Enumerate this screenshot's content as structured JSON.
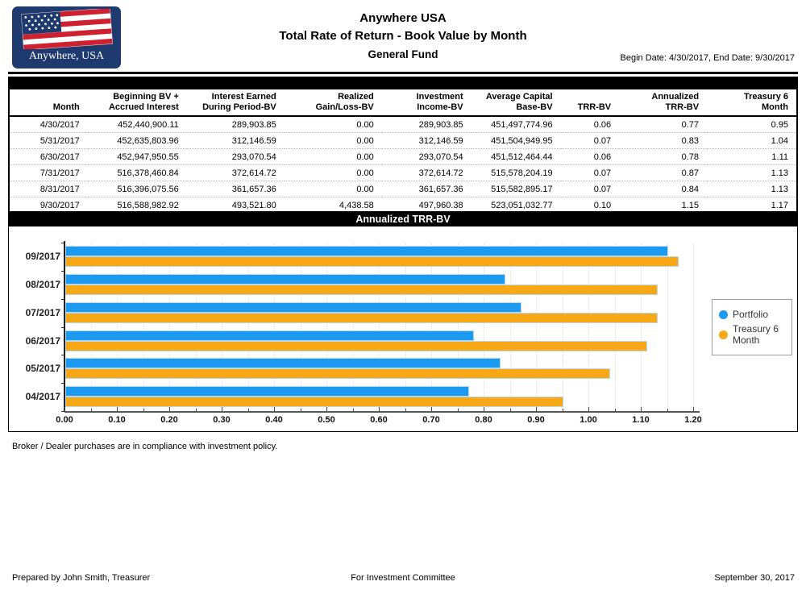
{
  "header": {
    "logo_text": "Anywhere, USA",
    "title": "Anywhere USA",
    "subtitle": "Total Rate of Return - Book Value by Month",
    "fund": "General Fund",
    "date_range": "Begin Date: 4/30/2017, End Date: 9/30/2017"
  },
  "table": {
    "columns": [
      "Month",
      "Beginning BV +\nAccrued Interest",
      "Interest Earned\nDuring Period-BV",
      "Realized\nGain/Loss-BV",
      "Investment\nIncome-BV",
      "Average Capital\nBase-BV",
      "TRR-BV",
      "Annualized\nTRR-BV",
      "Treasury 6\nMonth"
    ],
    "rows": [
      [
        "4/30/2017",
        "452,440,900.11",
        "289,903.85",
        "0.00",
        "289,903.85",
        "451,497,774.96",
        "0.06",
        "0.77",
        "0.95"
      ],
      [
        "5/31/2017",
        "452,635,803.96",
        "312,146.59",
        "0.00",
        "312,146.59",
        "451,504,949.95",
        "0.07",
        "0.83",
        "1.04"
      ],
      [
        "6/30/2017",
        "452,947,950.55",
        "293,070.54",
        "0.00",
        "293,070.54",
        "451,512,464.44",
        "0.06",
        "0.78",
        "1.11"
      ],
      [
        "7/31/2017",
        "516,378,460.84",
        "372,614.72",
        "0.00",
        "372,614.72",
        "515,578,204.19",
        "0.07",
        "0.87",
        "1.13"
      ],
      [
        "8/31/2017",
        "516,396,075.56",
        "361,657.36",
        "0.00",
        "361,657.36",
        "515,582,895.17",
        "0.07",
        "0.84",
        "1.13"
      ],
      [
        "9/30/2017",
        "516,588,982.92",
        "493,521.80",
        "4,438.58",
        "497,960.38",
        "523,051,032.77",
        "0.10",
        "1.15",
        "1.17"
      ]
    ]
  },
  "chart_data": {
    "type": "bar",
    "orientation": "horizontal",
    "title": "Annualized TRR-BV",
    "categories": [
      "09/2017",
      "08/2017",
      "07/2017",
      "06/2017",
      "05/2017",
      "04/2017"
    ],
    "series": [
      {
        "name": "Portfolio",
        "color": "#1c9af0",
        "values": [
          1.15,
          0.84,
          0.87,
          0.78,
          0.83,
          0.77
        ]
      },
      {
        "name": "Treasury 6 Month",
        "color": "#f8a814",
        "values": [
          1.17,
          1.13,
          1.13,
          1.11,
          1.04,
          0.95
        ]
      }
    ],
    "xlim": [
      0,
      1.2
    ],
    "xtick_labels": [
      "0.00",
      "0.10",
      "0.20",
      "0.30",
      "0.40",
      "0.50",
      "0.60",
      "0.70",
      "0.80",
      "0.90",
      "1.00",
      "1.10",
      "1.20"
    ],
    "grid": "vertical-light",
    "legend_position": "right",
    "legend": {
      "items": [
        {
          "color": "#1c9af0",
          "label": "Portfolio"
        },
        {
          "color": "#f8a814",
          "label": "Treasury 6\nMonth"
        }
      ]
    }
  },
  "notes": {
    "compliance": "Broker / Dealer purchases are in compliance with investment policy."
  },
  "footer": {
    "left": "Prepared by John Smith, Treasurer",
    "center": "For Investment Committee",
    "right": "September 30, 2017"
  }
}
